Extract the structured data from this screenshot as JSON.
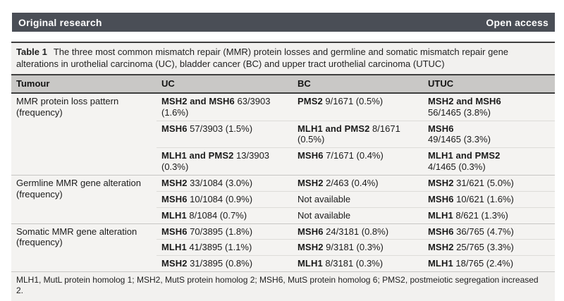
{
  "banner": {
    "left": "Original research",
    "right": "Open access"
  },
  "caption": {
    "label": "Table 1",
    "text": "The three most common mismatch repair (MMR) protein losses and germline and somatic mismatch repair gene\nalterations in urothelial carcinoma (UC), bladder cancer (BC) and upper tract urothelial carcinoma (UTUC)"
  },
  "table": {
    "columns": [
      "Tumour",
      "UC",
      "BC",
      "UTUC"
    ],
    "groups": [
      {
        "label": "MMR protein loss pattern (frequency)",
        "rows": [
          {
            "uc": {
              "b": "MSH2 and MSH6",
              "r": " 63/3903\n(1.6%)"
            },
            "bc": {
              "b": "PMS2",
              "r": " 9/1671 (0.5%)"
            },
            "utuc": {
              "b": "MSH2 and MSH6",
              "r": "\n56/1465 (3.8%)"
            }
          },
          {
            "uc": {
              "b": "MSH6",
              "r": " 57/3903 (1.5%)"
            },
            "bc": {
              "b": "MLH1 and PMS2",
              "r": " 8/1671\n(0.5%)"
            },
            "utuc": {
              "b": "MSH6",
              "r": "\n49/1465 (3.3%)"
            }
          },
          {
            "uc": {
              "b": "MLH1 and PMS2",
              "r": " 13/3903\n(0.3%)"
            },
            "bc": {
              "b": "MSH6",
              "r": " 7/1671 (0.4%)"
            },
            "utuc": {
              "b": "MLH1 and PMS2",
              "r": "\n4/1465 (0.3%)"
            }
          }
        ]
      },
      {
        "label": "Germline MMR gene alteration (frequency)",
        "rows": [
          {
            "uc": {
              "b": "MSH2",
              "r": " 33/1084 (3.0%)"
            },
            "bc": {
              "b": "MSH2",
              "r": " 2/463 (0.4%)"
            },
            "utuc": {
              "b": "MSH2",
              "r": " 31/621 (5.0%)"
            }
          },
          {
            "uc": {
              "b": "MSH6",
              "r": " 10/1084 (0.9%)"
            },
            "bc": {
              "b": "",
              "r": "Not available"
            },
            "utuc": {
              "b": "MSH6",
              "r": " 10/621 (1.6%)"
            }
          },
          {
            "uc": {
              "b": "MLH1",
              "r": " 8/1084 (0.7%)"
            },
            "bc": {
              "b": "",
              "r": "Not available"
            },
            "utuc": {
              "b": "MLH1",
              "r": " 8/621 (1.3%)"
            }
          }
        ]
      },
      {
        "label": "Somatic MMR gene alteration (frequency)",
        "rows": [
          {
            "uc": {
              "b": "MSH6",
              "r": " 70/3895 (1.8%)"
            },
            "bc": {
              "b": "MSH6",
              "r": " 24/3181 (0.8%)"
            },
            "utuc": {
              "b": "MSH6",
              "r": " 36/765 (4.7%)"
            }
          },
          {
            "uc": {
              "b": "MLH1",
              "r": " 41/3895 (1.1%)"
            },
            "bc": {
              "b": "MSH2",
              "r": " 9/3181 (0.3%)"
            },
            "utuc": {
              "b": "MSH2",
              "r": " 25/765 (3.3%)"
            }
          },
          {
            "uc": {
              "b": "MSH2",
              "r": " 31/3895 (0.8%)"
            },
            "bc": {
              "b": "MLH1",
              "r": " 8/3181 (0.3%)"
            },
            "utuc": {
              "b": "MLH1",
              "r": " 18/765 (2.4%)"
            }
          }
        ]
      }
    ]
  },
  "footnote": "MLH1, MutL protein homolog 1; MSH2, MutS protein homolog 2; MSH6, MutS protein homolog 6; PMS2, postmeiotic segregation increased\n2.",
  "colors": {
    "banner_bg": "#4a4e56",
    "banner_text": "#ffffff",
    "header_row_bg": "#c9c8c6",
    "block_bg": "#f2f1ef",
    "body_bg": "#f4f3f1",
    "dark_rule": "#3e3e3e",
    "group_divider": "#c7c6c4",
    "subrow_divider": "#dddcd9",
    "text": "#1b1b1b"
  }
}
